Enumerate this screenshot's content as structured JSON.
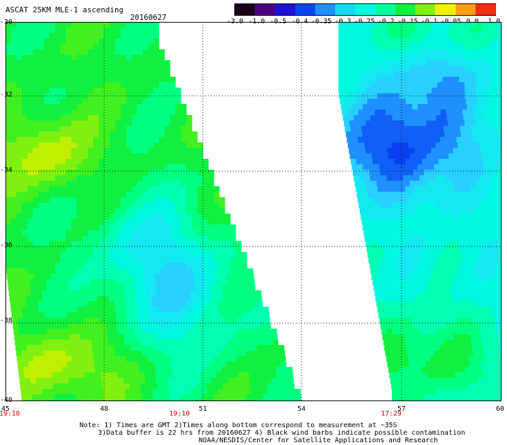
{
  "header": {
    "title": "ASCAT 25KM MLE-1 ascending",
    "date": "20160627"
  },
  "colorbar": {
    "labels": [
      "-3.0",
      "-1.0",
      "-0.5",
      "-0.4",
      "-0.35",
      "-0.3",
      "-0.25",
      "-0.2",
      "-0.15",
      "-0.1",
      "-0.05",
      "0.0",
      "1.0"
    ],
    "colors": [
      "#1a001a",
      "#4b0082",
      "#2010d0",
      "#0a46f0",
      "#1e90ff",
      "#14d8f0",
      "#00f8e0",
      "#00ffa0",
      "#10f040",
      "#80f010",
      "#f0f000",
      "#ffa010",
      "#f03010"
    ]
  },
  "axes": {
    "y_labels": [
      "-30",
      "-32",
      "-34",
      "-36",
      "-38",
      "-40"
    ],
    "x_labels": [
      "45",
      "48",
      "51",
      "54",
      "57",
      "60"
    ]
  },
  "times": [
    "19:10",
    "19:10",
    "17:29"
  ],
  "notes": {
    "line1": "Note: 1) Times are GMT 2)Times along bottom correspond to measurement at ~35S",
    "line2": "3)Data buffer is 22 hrs from 20160627 4) Black wind barbs indicate possible contamination",
    "line3": "NOAA/NESDIS/Center for Satellite Applications and Research"
  }
}
